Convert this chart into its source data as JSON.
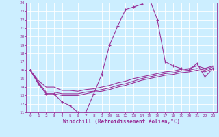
{
  "xlabel": "Windchill (Refroidissement éolien,°C)",
  "bg_color": "#cceeff",
  "grid_color": "#ffffff",
  "line_color": "#993399",
  "xlim": [
    -0.5,
    23.5
  ],
  "ylim": [
    11,
    24
  ],
  "yticks": [
    11,
    12,
    13,
    14,
    15,
    16,
    17,
    18,
    19,
    20,
    21,
    22,
    23,
    24
  ],
  "xticks": [
    0,
    1,
    2,
    3,
    4,
    5,
    6,
    7,
    8,
    9,
    10,
    11,
    12,
    13,
    14,
    15,
    16,
    17,
    18,
    19,
    20,
    21,
    22,
    23
  ],
  "lines": [
    {
      "x": [
        0,
        1,
        2,
        3,
        4,
        5,
        6,
        7,
        8,
        9,
        10,
        11,
        12,
        13,
        14,
        15,
        16,
        17,
        18,
        19,
        20,
        21,
        22,
        23
      ],
      "y": [
        16.0,
        14.4,
        13.2,
        13.2,
        12.2,
        11.8,
        11.0,
        11.0,
        13.2,
        15.5,
        19.0,
        21.2,
        23.2,
        23.5,
        23.8,
        24.5,
        22.0,
        17.0,
        16.5,
        16.2,
        16.0,
        16.8,
        15.2,
        16.2
      ],
      "marker": true
    },
    {
      "x": [
        0,
        1,
        2,
        3,
        4,
        5,
        6,
        7,
        8,
        9,
        10,
        11,
        12,
        13,
        14,
        15,
        16,
        17,
        18,
        19,
        20,
        21,
        22,
        23
      ],
      "y": [
        16.0,
        14.5,
        13.2,
        13.2,
        13.0,
        13.0,
        13.0,
        13.2,
        13.4,
        13.5,
        13.7,
        14.0,
        14.2,
        14.5,
        14.8,
        15.0,
        15.2,
        15.4,
        15.5,
        15.7,
        15.8,
        16.0,
        15.8,
        16.2
      ],
      "marker": false
    },
    {
      "x": [
        0,
        1,
        2,
        3,
        4,
        5,
        6,
        7,
        8,
        9,
        10,
        11,
        12,
        13,
        14,
        15,
        16,
        17,
        18,
        19,
        20,
        21,
        22,
        23
      ],
      "y": [
        16.0,
        14.6,
        13.4,
        13.4,
        13.2,
        13.2,
        13.2,
        13.4,
        13.5,
        13.7,
        13.9,
        14.2,
        14.4,
        14.7,
        15.0,
        15.2,
        15.4,
        15.6,
        15.7,
        15.9,
        16.0,
        16.2,
        16.0,
        16.4
      ],
      "marker": false
    },
    {
      "x": [
        0,
        1,
        2,
        3,
        4,
        5,
        6,
        7,
        8,
        9,
        10,
        11,
        12,
        13,
        14,
        15,
        16,
        17,
        18,
        19,
        20,
        21,
        22,
        23
      ],
      "y": [
        16.0,
        14.8,
        14.0,
        14.0,
        13.6,
        13.6,
        13.5,
        13.7,
        13.8,
        14.0,
        14.2,
        14.5,
        14.7,
        15.0,
        15.2,
        15.4,
        15.6,
        15.8,
        15.9,
        16.1,
        16.2,
        16.5,
        16.2,
        16.5
      ],
      "marker": false
    }
  ]
}
